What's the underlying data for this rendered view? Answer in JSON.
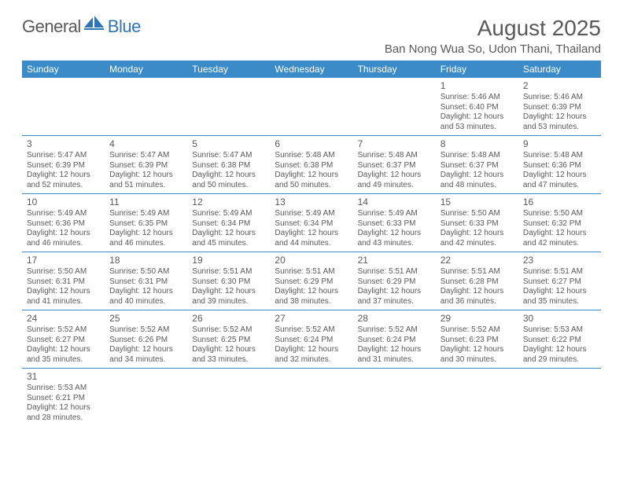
{
  "logo": {
    "text1": "General",
    "text2": "Blue"
  },
  "title": "August 2025",
  "location": "Ban Nong Wua So, Udon Thani, Thailand",
  "colors": {
    "header_bg": "#3b8bc9",
    "header_fg": "#ffffff",
    "text": "#595959",
    "rule": "#3b8bc9",
    "background": "#ffffff",
    "logo_gray": "#595959",
    "logo_blue": "#2f74b5"
  },
  "typography": {
    "month_title_pt": 28,
    "location_pt": 15,
    "weekday_pt": 12,
    "daynum_pt": 12,
    "cell_body_pt": 10,
    "logo_pt": 22
  },
  "weekdays": [
    "Sunday",
    "Monday",
    "Tuesday",
    "Wednesday",
    "Thursday",
    "Friday",
    "Saturday"
  ],
  "weeks": [
    [
      null,
      null,
      null,
      null,
      null,
      {
        "n": "1",
        "sunrise": "Sunrise: 5:46 AM",
        "sunset": "Sunset: 6:40 PM",
        "day1": "Daylight: 12 hours",
        "day2": "and 53 minutes."
      },
      {
        "n": "2",
        "sunrise": "Sunrise: 5:46 AM",
        "sunset": "Sunset: 6:39 PM",
        "day1": "Daylight: 12 hours",
        "day2": "and 53 minutes."
      }
    ],
    [
      {
        "n": "3",
        "sunrise": "Sunrise: 5:47 AM",
        "sunset": "Sunset: 6:39 PM",
        "day1": "Daylight: 12 hours",
        "day2": "and 52 minutes."
      },
      {
        "n": "4",
        "sunrise": "Sunrise: 5:47 AM",
        "sunset": "Sunset: 6:39 PM",
        "day1": "Daylight: 12 hours",
        "day2": "and 51 minutes."
      },
      {
        "n": "5",
        "sunrise": "Sunrise: 5:47 AM",
        "sunset": "Sunset: 6:38 PM",
        "day1": "Daylight: 12 hours",
        "day2": "and 50 minutes."
      },
      {
        "n": "6",
        "sunrise": "Sunrise: 5:48 AM",
        "sunset": "Sunset: 6:38 PM",
        "day1": "Daylight: 12 hours",
        "day2": "and 50 minutes."
      },
      {
        "n": "7",
        "sunrise": "Sunrise: 5:48 AM",
        "sunset": "Sunset: 6:37 PM",
        "day1": "Daylight: 12 hours",
        "day2": "and 49 minutes."
      },
      {
        "n": "8",
        "sunrise": "Sunrise: 5:48 AM",
        "sunset": "Sunset: 6:37 PM",
        "day1": "Daylight: 12 hours",
        "day2": "and 48 minutes."
      },
      {
        "n": "9",
        "sunrise": "Sunrise: 5:48 AM",
        "sunset": "Sunset: 6:36 PM",
        "day1": "Daylight: 12 hours",
        "day2": "and 47 minutes."
      }
    ],
    [
      {
        "n": "10",
        "sunrise": "Sunrise: 5:49 AM",
        "sunset": "Sunset: 6:36 PM",
        "day1": "Daylight: 12 hours",
        "day2": "and 46 minutes."
      },
      {
        "n": "11",
        "sunrise": "Sunrise: 5:49 AM",
        "sunset": "Sunset: 6:35 PM",
        "day1": "Daylight: 12 hours",
        "day2": "and 46 minutes."
      },
      {
        "n": "12",
        "sunrise": "Sunrise: 5:49 AM",
        "sunset": "Sunset: 6:34 PM",
        "day1": "Daylight: 12 hours",
        "day2": "and 45 minutes."
      },
      {
        "n": "13",
        "sunrise": "Sunrise: 5:49 AM",
        "sunset": "Sunset: 6:34 PM",
        "day1": "Daylight: 12 hours",
        "day2": "and 44 minutes."
      },
      {
        "n": "14",
        "sunrise": "Sunrise: 5:49 AM",
        "sunset": "Sunset: 6:33 PM",
        "day1": "Daylight: 12 hours",
        "day2": "and 43 minutes."
      },
      {
        "n": "15",
        "sunrise": "Sunrise: 5:50 AM",
        "sunset": "Sunset: 6:33 PM",
        "day1": "Daylight: 12 hours",
        "day2": "and 42 minutes."
      },
      {
        "n": "16",
        "sunrise": "Sunrise: 5:50 AM",
        "sunset": "Sunset: 6:32 PM",
        "day1": "Daylight: 12 hours",
        "day2": "and 42 minutes."
      }
    ],
    [
      {
        "n": "17",
        "sunrise": "Sunrise: 5:50 AM",
        "sunset": "Sunset: 6:31 PM",
        "day1": "Daylight: 12 hours",
        "day2": "and 41 minutes."
      },
      {
        "n": "18",
        "sunrise": "Sunrise: 5:50 AM",
        "sunset": "Sunset: 6:31 PM",
        "day1": "Daylight: 12 hours",
        "day2": "and 40 minutes."
      },
      {
        "n": "19",
        "sunrise": "Sunrise: 5:51 AM",
        "sunset": "Sunset: 6:30 PM",
        "day1": "Daylight: 12 hours",
        "day2": "and 39 minutes."
      },
      {
        "n": "20",
        "sunrise": "Sunrise: 5:51 AM",
        "sunset": "Sunset: 6:29 PM",
        "day1": "Daylight: 12 hours",
        "day2": "and 38 minutes."
      },
      {
        "n": "21",
        "sunrise": "Sunrise: 5:51 AM",
        "sunset": "Sunset: 6:29 PM",
        "day1": "Daylight: 12 hours",
        "day2": "and 37 minutes."
      },
      {
        "n": "22",
        "sunrise": "Sunrise: 5:51 AM",
        "sunset": "Sunset: 6:28 PM",
        "day1": "Daylight: 12 hours",
        "day2": "and 36 minutes."
      },
      {
        "n": "23",
        "sunrise": "Sunrise: 5:51 AM",
        "sunset": "Sunset: 6:27 PM",
        "day1": "Daylight: 12 hours",
        "day2": "and 35 minutes."
      }
    ],
    [
      {
        "n": "24",
        "sunrise": "Sunrise: 5:52 AM",
        "sunset": "Sunset: 6:27 PM",
        "day1": "Daylight: 12 hours",
        "day2": "and 35 minutes."
      },
      {
        "n": "25",
        "sunrise": "Sunrise: 5:52 AM",
        "sunset": "Sunset: 6:26 PM",
        "day1": "Daylight: 12 hours",
        "day2": "and 34 minutes."
      },
      {
        "n": "26",
        "sunrise": "Sunrise: 5:52 AM",
        "sunset": "Sunset: 6:25 PM",
        "day1": "Daylight: 12 hours",
        "day2": "and 33 minutes."
      },
      {
        "n": "27",
        "sunrise": "Sunrise: 5:52 AM",
        "sunset": "Sunset: 6:24 PM",
        "day1": "Daylight: 12 hours",
        "day2": "and 32 minutes."
      },
      {
        "n": "28",
        "sunrise": "Sunrise: 5:52 AM",
        "sunset": "Sunset: 6:24 PM",
        "day1": "Daylight: 12 hours",
        "day2": "and 31 minutes."
      },
      {
        "n": "29",
        "sunrise": "Sunrise: 5:52 AM",
        "sunset": "Sunset: 6:23 PM",
        "day1": "Daylight: 12 hours",
        "day2": "and 30 minutes."
      },
      {
        "n": "30",
        "sunrise": "Sunrise: 5:53 AM",
        "sunset": "Sunset: 6:22 PM",
        "day1": "Daylight: 12 hours",
        "day2": "and 29 minutes."
      }
    ],
    [
      {
        "n": "31",
        "sunrise": "Sunrise: 5:53 AM",
        "sunset": "Sunset: 6:21 PM",
        "day1": "Daylight: 12 hours",
        "day2": "and 28 minutes."
      },
      null,
      null,
      null,
      null,
      null,
      null
    ]
  ]
}
